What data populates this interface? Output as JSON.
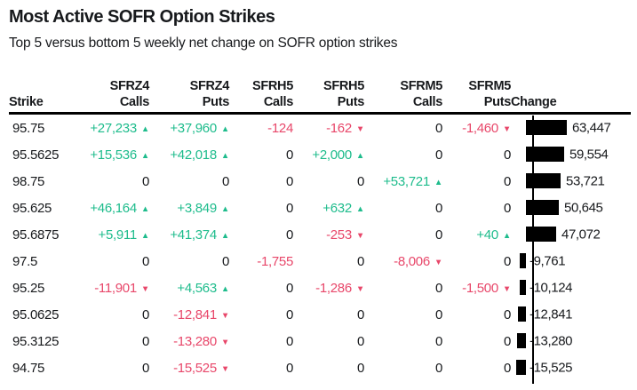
{
  "title": "Most Active SOFR Option Strikes",
  "subtitle": "Top 5 versus bottom 5 weekly net change on SOFR option strikes",
  "colors": {
    "positive": "#1ebc8c",
    "negative": "#e8476a",
    "text": "#17191c",
    "bar": "#000000"
  },
  "table": {
    "columns": [
      {
        "top": "",
        "bottom": "Strike",
        "align": "left"
      },
      {
        "top": "SFRZ4",
        "bottom": "Calls",
        "align": "right"
      },
      {
        "top": "SFRZ4",
        "bottom": "Puts",
        "align": "right"
      },
      {
        "top": "SFRH5",
        "bottom": "Calls",
        "align": "right"
      },
      {
        "top": "SFRH5",
        "bottom": "Puts",
        "align": "right"
      },
      {
        "top": "SFRM5",
        "bottom": "Calls",
        "align": "right"
      },
      {
        "top": "SFRM5",
        "bottom": "Puts",
        "align": "right"
      },
      {
        "top": "",
        "bottom": "Change",
        "align": "left"
      }
    ],
    "rows": [
      {
        "strike": "95.75",
        "cells": [
          {
            "v": "+27,233",
            "s": "pos",
            "a": "up"
          },
          {
            "v": "+37,960",
            "s": "pos",
            "a": "up"
          },
          {
            "v": "-124",
            "s": "neg",
            "a": "none"
          },
          {
            "v": "-162",
            "s": "neg",
            "a": "down"
          },
          {
            "v": "0",
            "s": "zero",
            "a": "none"
          },
          {
            "v": "-1,460",
            "s": "neg",
            "a": "down"
          }
        ],
        "change": 63447,
        "change_label": "63,447"
      },
      {
        "strike": "95.5625",
        "cells": [
          {
            "v": "+15,536",
            "s": "pos",
            "a": "up"
          },
          {
            "v": "+42,018",
            "s": "pos",
            "a": "up"
          },
          {
            "v": "0",
            "s": "zero",
            "a": "none"
          },
          {
            "v": "+2,000",
            "s": "pos",
            "a": "up"
          },
          {
            "v": "0",
            "s": "zero",
            "a": "none"
          },
          {
            "v": "0",
            "s": "zero",
            "a": "none"
          }
        ],
        "change": 59554,
        "change_label": "59,554"
      },
      {
        "strike": "98.75",
        "cells": [
          {
            "v": "0",
            "s": "zero",
            "a": "none"
          },
          {
            "v": "0",
            "s": "zero",
            "a": "none"
          },
          {
            "v": "0",
            "s": "zero",
            "a": "none"
          },
          {
            "v": "0",
            "s": "zero",
            "a": "none"
          },
          {
            "v": "+53,721",
            "s": "pos",
            "a": "up"
          },
          {
            "v": "0",
            "s": "zero",
            "a": "none"
          }
        ],
        "change": 53721,
        "change_label": "53,721"
      },
      {
        "strike": "95.625",
        "cells": [
          {
            "v": "+46,164",
            "s": "pos",
            "a": "up"
          },
          {
            "v": "+3,849",
            "s": "pos",
            "a": "up"
          },
          {
            "v": "0",
            "s": "zero",
            "a": "none"
          },
          {
            "v": "+632",
            "s": "pos",
            "a": "up"
          },
          {
            "v": "0",
            "s": "zero",
            "a": "none"
          },
          {
            "v": "0",
            "s": "zero",
            "a": "none"
          }
        ],
        "change": 50645,
        "change_label": "50,645"
      },
      {
        "strike": "95.6875",
        "cells": [
          {
            "v": "+5,911",
            "s": "pos",
            "a": "up"
          },
          {
            "v": "+41,374",
            "s": "pos",
            "a": "up"
          },
          {
            "v": "0",
            "s": "zero",
            "a": "none"
          },
          {
            "v": "-253",
            "s": "neg",
            "a": "down"
          },
          {
            "v": "0",
            "s": "zero",
            "a": "none"
          },
          {
            "v": "+40",
            "s": "pos",
            "a": "up"
          }
        ],
        "change": 47072,
        "change_label": "47,072"
      },
      {
        "strike": "97.5",
        "cells": [
          {
            "v": "0",
            "s": "zero",
            "a": "none"
          },
          {
            "v": "0",
            "s": "zero",
            "a": "none"
          },
          {
            "v": "-1,755",
            "s": "neg",
            "a": "none"
          },
          {
            "v": "0",
            "s": "zero",
            "a": "none"
          },
          {
            "v": "-8,006",
            "s": "neg",
            "a": "down"
          },
          {
            "v": "0",
            "s": "zero",
            "a": "none"
          }
        ],
        "change": -9761,
        "change_label": "-9,761"
      },
      {
        "strike": "95.25",
        "cells": [
          {
            "v": "-11,901",
            "s": "neg",
            "a": "down"
          },
          {
            "v": "+4,563",
            "s": "pos",
            "a": "up"
          },
          {
            "v": "0",
            "s": "zero",
            "a": "none"
          },
          {
            "v": "-1,286",
            "s": "neg",
            "a": "down"
          },
          {
            "v": "0",
            "s": "zero",
            "a": "none"
          },
          {
            "v": "-1,500",
            "s": "neg",
            "a": "down"
          }
        ],
        "change": -10124,
        "change_label": "-10,124"
      },
      {
        "strike": "95.0625",
        "cells": [
          {
            "v": "0",
            "s": "zero",
            "a": "none"
          },
          {
            "v": "-12,841",
            "s": "neg",
            "a": "down"
          },
          {
            "v": "0",
            "s": "zero",
            "a": "none"
          },
          {
            "v": "0",
            "s": "zero",
            "a": "none"
          },
          {
            "v": "0",
            "s": "zero",
            "a": "none"
          },
          {
            "v": "0",
            "s": "zero",
            "a": "none"
          }
        ],
        "change": -12841,
        "change_label": "-12,841"
      },
      {
        "strike": "95.3125",
        "cells": [
          {
            "v": "0",
            "s": "zero",
            "a": "none"
          },
          {
            "v": "-13,280",
            "s": "neg",
            "a": "down"
          },
          {
            "v": "0",
            "s": "zero",
            "a": "none"
          },
          {
            "v": "0",
            "s": "zero",
            "a": "none"
          },
          {
            "v": "0",
            "s": "zero",
            "a": "none"
          },
          {
            "v": "0",
            "s": "zero",
            "a": "none"
          }
        ],
        "change": -13280,
        "change_label": "-13,280"
      },
      {
        "strike": "94.75",
        "cells": [
          {
            "v": "0",
            "s": "zero",
            "a": "none"
          },
          {
            "v": "-15,525",
            "s": "neg",
            "a": "down"
          },
          {
            "v": "0",
            "s": "zero",
            "a": "none"
          },
          {
            "v": "0",
            "s": "zero",
            "a": "none"
          },
          {
            "v": "0",
            "s": "zero",
            "a": "none"
          },
          {
            "v": "0",
            "s": "zero",
            "a": "none"
          }
        ],
        "change": -15525,
        "change_label": "-15,525"
      }
    ]
  },
  "chart_data": {
    "type": "table",
    "title": "Most Active SOFR Option Strikes",
    "subtitle": "Top 5 versus bottom 5 weekly net change on SOFR option strikes",
    "columns": [
      "Strike",
      "SFRZ4 Calls",
      "SFRZ4 Puts",
      "SFRH5 Calls",
      "SFRH5 Puts",
      "SFRM5 Calls",
      "SFRM5 Puts",
      "Change"
    ],
    "rows": [
      [
        "95.75",
        27233,
        37960,
        -124,
        -162,
        0,
        -1460,
        63447
      ],
      [
        "95.5625",
        15536,
        42018,
        0,
        2000,
        0,
        0,
        59554
      ],
      [
        "98.75",
        0,
        0,
        0,
        0,
        53721,
        0,
        53721
      ],
      [
        "95.625",
        46164,
        3849,
        0,
        632,
        0,
        0,
        50645
      ],
      [
        "95.6875",
        5911,
        41374,
        0,
        -253,
        0,
        40,
        47072
      ],
      [
        "97.5",
        0,
        0,
        -1755,
        0,
        -8006,
        0,
        -9761
      ],
      [
        "95.25",
        -11901,
        4563,
        0,
        -1286,
        0,
        -1500,
        -10124
      ],
      [
        "95.0625",
        0,
        -12841,
        0,
        0,
        0,
        0,
        -12841
      ],
      [
        "95.3125",
        0,
        -13280,
        0,
        0,
        0,
        0,
        -13280
      ],
      [
        "94.75",
        0,
        -15525,
        0,
        0,
        0,
        0,
        -15525
      ]
    ],
    "bar_column": "Change",
    "bar_type": "bar",
    "bar_orientation": "horizontal",
    "bar_scale_max": 63447,
    "notes": "Black bars in Change column extend right of baseline for positive values, left for negative; up arrows green, down arrows red"
  }
}
